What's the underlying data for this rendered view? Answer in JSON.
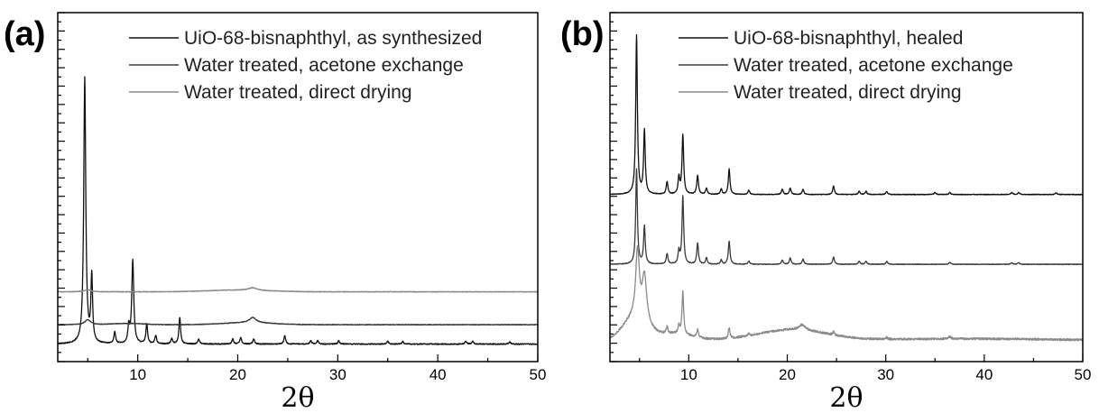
{
  "chart_data": [
    {
      "panel": "(a)",
      "type": "line",
      "xlabel": "2θ",
      "ylabel": "",
      "xlim": [
        2,
        50
      ],
      "x_ticks": [
        10,
        20,
        30,
        40,
        50
      ],
      "y_ticks_labeled": false,
      "grid": false,
      "legend_position": "top-right",
      "series": [
        {
          "name": "UiO-68-bisnaphthyl, as synthesized",
          "color": "#111111",
          "baseline": 0.28,
          "noise": 0.15,
          "broad_peaks": [],
          "peaks": [
            [
              4.7,
              80,
              0.12
            ],
            [
              5.4,
              20,
              0.1
            ],
            [
              7.7,
              3.5,
              0.1
            ],
            [
              9.1,
              5,
              0.1
            ],
            [
              9.5,
              25,
              0.12
            ],
            [
              10.9,
              6,
              0.1
            ],
            [
              11.8,
              2.5,
              0.1
            ],
            [
              13.4,
              1.5,
              0.1
            ],
            [
              14.2,
              8,
              0.1
            ],
            [
              16.1,
              1.5,
              0.1
            ],
            [
              19.5,
              1.5,
              0.1
            ],
            [
              20.3,
              2,
              0.1
            ],
            [
              21.6,
              1.5,
              0.1
            ],
            [
              24.7,
              2.5,
              0.1
            ],
            [
              27.3,
              1,
              0.1
            ],
            [
              28.0,
              1,
              0.1
            ],
            [
              30.1,
              1,
              0.1
            ],
            [
              35.0,
              0.8,
              0.1
            ],
            [
              36.5,
              0.8,
              0.1
            ],
            [
              42.8,
              0.8,
              0.1
            ],
            [
              43.5,
              0.8,
              0.1
            ],
            [
              47.2,
              0.6,
              0.1
            ]
          ]
        },
        {
          "name": "Water treated, acetone exchange",
          "color": "#3a3a3a",
          "baseline": 6.1,
          "noise": 0.1,
          "peaks": [
            [
              5.0,
              1.5,
              0.35
            ],
            [
              21.5,
              1.6,
              0.4
            ]
          ],
          "broad_peaks": [
            [
              9.0,
              0.4,
              1.5
            ],
            [
              21.0,
              0.6,
              2.5
            ]
          ]
        },
        {
          "name": "Water treated, direct drying",
          "color": "#8a8a8a",
          "baseline": 16.0,
          "noise": 0.1,
          "peaks": [
            [
              5.0,
              0.6,
              0.4
            ],
            [
              21.5,
              0.8,
              0.5
            ]
          ],
          "broad_peaks": [
            [
              20.0,
              0.5,
              3.0
            ]
          ]
        }
      ]
    },
    {
      "panel": "(b)",
      "type": "line",
      "xlabel": "2θ",
      "ylabel": "",
      "xlim": [
        2,
        50
      ],
      "x_ticks": [
        10,
        20,
        30,
        40,
        50
      ],
      "y_ticks_labeled": false,
      "grid": false,
      "legend_position": "top-right",
      "series": [
        {
          "name": "UiO-68-bisnaphthyl, healed",
          "color": "#111111",
          "baseline": 79,
          "noise": 0.15,
          "broad_peaks": [],
          "peaks": [
            [
              4.7,
              75,
              0.1
            ],
            [
              5.5,
              30,
              0.1
            ],
            [
              7.8,
              6,
              0.1
            ],
            [
              9.0,
              8,
              0.1
            ],
            [
              9.4,
              28,
              0.1
            ],
            [
              10.9,
              9,
              0.1
            ],
            [
              11.8,
              3,
              0.1
            ],
            [
              13.3,
              2.5,
              0.1
            ],
            [
              14.1,
              12,
              0.1
            ],
            [
              16.1,
              2,
              0.1
            ],
            [
              19.5,
              2.5,
              0.1
            ],
            [
              20.3,
              3,
              0.1
            ],
            [
              21.6,
              2.5,
              0.1
            ],
            [
              24.7,
              4,
              0.1
            ],
            [
              27.3,
              1.5,
              0.1
            ],
            [
              28.0,
              1.5,
              0.1
            ],
            [
              30.1,
              1.5,
              0.1
            ],
            [
              35.0,
              1,
              0.1
            ],
            [
              36.5,
              1,
              0.1
            ],
            [
              42.8,
              1,
              0.1
            ],
            [
              43.5,
              1,
              0.1
            ],
            [
              47.3,
              0.8,
              0.1
            ]
          ]
        },
        {
          "name": "Water treated, acetone exchange",
          "color": "#3a3a3a",
          "baseline": 46,
          "noise": 0.15,
          "broad_peaks": [],
          "peaks": [
            [
              4.7,
              45,
              0.1
            ],
            [
              5.5,
              18,
              0.1
            ],
            [
              7.8,
              5,
              0.1
            ],
            [
              9.0,
              6,
              0.1
            ],
            [
              9.4,
              32,
              0.1
            ],
            [
              10.9,
              10,
              0.1
            ],
            [
              11.8,
              3,
              0.1
            ],
            [
              13.3,
              2,
              0.1
            ],
            [
              14.1,
              11,
              0.1
            ],
            [
              16.1,
              1.5,
              0.1
            ],
            [
              19.5,
              2,
              0.1
            ],
            [
              20.3,
              3,
              0.1
            ],
            [
              21.6,
              2.5,
              0.1
            ],
            [
              24.7,
              3.5,
              0.1
            ],
            [
              27.3,
              1.5,
              0.1
            ],
            [
              28.0,
              1.5,
              0.1
            ],
            [
              30.1,
              1.5,
              0.1
            ],
            [
              36.5,
              1,
              0.1
            ],
            [
              42.8,
              0.8,
              0.1
            ],
            [
              43.5,
              0.8,
              0.1
            ]
          ]
        },
        {
          "name": "Water treated, direct drying",
          "color": "#8a8a8a",
          "baseline": 10,
          "noise": 0.5,
          "peaks": [
            [
              4.8,
              32,
              0.22
            ],
            [
              5.5,
              22,
              0.28
            ],
            [
              7.8,
              3,
              0.1
            ],
            [
              9.0,
              4,
              0.1
            ],
            [
              9.4,
              20,
              0.1
            ],
            [
              10.9,
              4,
              0.1
            ],
            [
              14.1,
              5,
              0.1
            ],
            [
              16.1,
              1,
              0.1
            ],
            [
              21.5,
              2.5,
              0.4
            ],
            [
              24.7,
              1.5,
              0.1
            ],
            [
              30.1,
              1,
              0.1
            ],
            [
              36.5,
              1,
              0.15
            ]
          ],
          "broad_peaks": [
            [
              4.5,
              10,
              1.2
            ],
            [
              8.5,
              3,
              1.8
            ],
            [
              20.5,
              5,
              3.5
            ],
            [
              38.0,
              0.8,
              8.0
            ]
          ]
        }
      ]
    }
  ]
}
